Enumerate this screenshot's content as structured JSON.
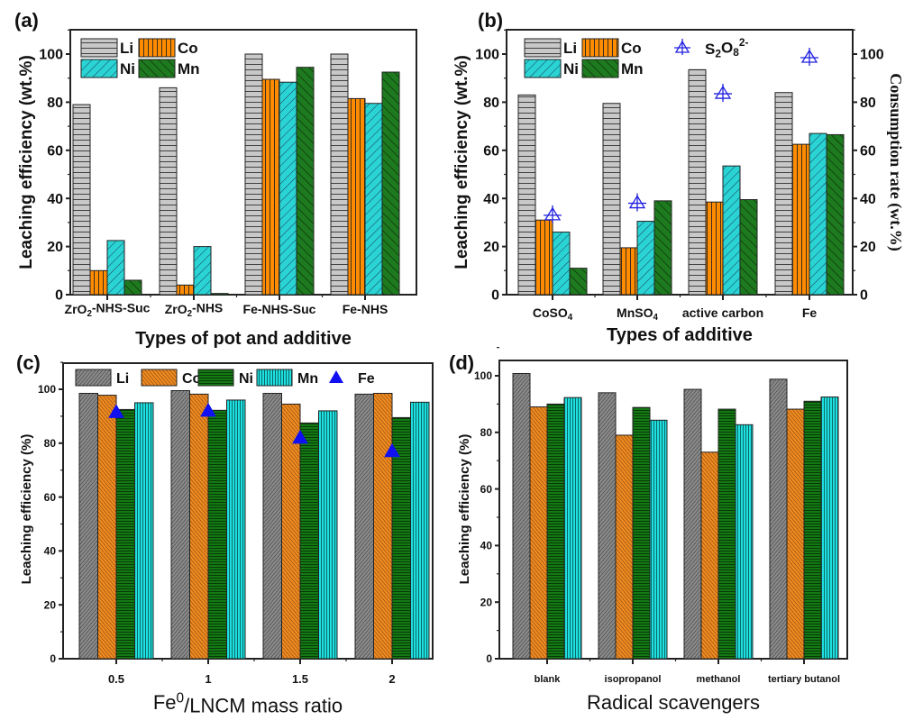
{
  "chart_data": [
    {
      "panel": "a",
      "type": "bar",
      "panel_label": "(a)",
      "title": "",
      "xlabel": "Types of pot and additive",
      "ylabel": "Leaching efficiency (wt.%)",
      "ylim": [
        0,
        110
      ],
      "yticks": [
        0,
        20,
        40,
        60,
        80,
        100
      ],
      "categories": [
        "ZrO2-NHS-Suc",
        "ZrO2-NHS",
        "Fe-NHS-Suc",
        "Fe-NHS"
      ],
      "category_labels": [
        {
          "parts": [
            {
              "t": "ZrO"
            },
            {
              "t": "2",
              "sub": true
            },
            {
              "t": "-NHS-Suc"
            }
          ]
        },
        {
          "parts": [
            {
              "t": "ZrO"
            },
            {
              "t": "2",
              "sub": true
            },
            {
              "t": "-NHS"
            }
          ]
        },
        {
          "parts": [
            {
              "t": "Fe-NHS-Suc"
            }
          ]
        },
        {
          "parts": [
            {
              "t": "Fe-NHS"
            }
          ]
        }
      ],
      "series": [
        {
          "name": "Li",
          "pattern": "hlines",
          "color": "#c8c8c8",
          "values": [
            79,
            86,
            100,
            100
          ]
        },
        {
          "name": "Co",
          "pattern": "vlines",
          "color": "#ff8c00",
          "values": [
            10,
            4,
            89.5,
            81.5
          ]
        },
        {
          "name": "Ni",
          "pattern": "diag-up",
          "color": "#2ad4d4",
          "values": [
            22.5,
            20,
            88.3,
            79.5
          ]
        },
        {
          "name": "Mn",
          "pattern": "diag-down",
          "color": "#1e7a1e",
          "values": [
            6,
            0.5,
            94.5,
            92.5
          ]
        }
      ],
      "legend_position": "top-left",
      "grid": false
    },
    {
      "panel": "b",
      "type": "bar",
      "panel_label": "(b)",
      "title": "",
      "xlabel": "Types of additive",
      "ylabel": "Leaching efficiency (wt.%)",
      "ylabel_right": "Consumption rate (wt.%)",
      "ylim": [
        0,
        110
      ],
      "ylim_right": [
        0,
        110
      ],
      "yticks": [
        0,
        20,
        40,
        60,
        80,
        100
      ],
      "categories": [
        "CoSO4",
        "MnSO4",
        "active carbon",
        "Fe"
      ],
      "category_labels": [
        {
          "parts": [
            {
              "t": "CoSO"
            },
            {
              "t": "4",
              "sub": true
            }
          ]
        },
        {
          "parts": [
            {
              "t": "MnSO"
            },
            {
              "t": "4",
              "sub": true
            }
          ]
        },
        {
          "parts": [
            {
              "t": "active carbon"
            }
          ]
        },
        {
          "parts": [
            {
              "t": "Fe"
            }
          ]
        }
      ],
      "series": [
        {
          "name": "Li",
          "pattern": "hlines",
          "color": "#c8c8c8",
          "values": [
            83,
            79.5,
            93.5,
            84
          ]
        },
        {
          "name": "Co",
          "pattern": "vlines",
          "color": "#ff8c00",
          "values": [
            31,
            19.5,
            38.5,
            62.5
          ]
        },
        {
          "name": "Ni",
          "pattern": "diag-up",
          "color": "#2ad4d4",
          "values": [
            26,
            30.5,
            53.5,
            67
          ]
        },
        {
          "name": "Mn",
          "pattern": "diag-down",
          "color": "#1e7a1e",
          "values": [
            11,
            39,
            39.5,
            66.5
          ]
        }
      ],
      "scatter_series": [
        {
          "name": "S2O8 2-",
          "label_parts": [
            {
              "t": "S"
            },
            {
              "t": "2",
              "sub": true
            },
            {
              "t": "O"
            },
            {
              "t": "8",
              "sub": true
            },
            {
              "t": "2-",
              "sup": true
            }
          ],
          "axis": "right",
          "marker": "open-triangle-cross",
          "color": "#2020e0",
          "values": [
            33,
            38,
            83.5,
            98.5
          ]
        }
      ],
      "legend_position": "top-left",
      "grid": false
    },
    {
      "panel": "c",
      "type": "bar",
      "panel_label": "(c)",
      "title": "",
      "xlabel": "Fe0/LNCM mass ratio",
      "xlabel_parts": [
        {
          "t": "Fe"
        },
        {
          "t": "0",
          "sup": true
        },
        {
          "t": "/LNCM mass ratio"
        }
      ],
      "ylabel": "Leaching efficiency (%)",
      "ylim": [
        0,
        110
      ],
      "yticks": [
        0,
        20,
        40,
        60,
        80,
        100
      ],
      "categories": [
        "0.5",
        "1",
        "1.5",
        "2"
      ],
      "series": [
        {
          "name": "Li",
          "pattern": "fine-diag-up",
          "color": "#808080",
          "values": [
            98.5,
            99.5,
            98.5,
            98.2
          ]
        },
        {
          "name": "Co",
          "pattern": "fine-diag-down",
          "color": "#f08a20",
          "values": [
            97.8,
            98.2,
            94.5,
            98.5
          ]
        },
        {
          "name": "Ni",
          "pattern": "fine-hlines",
          "color": "#137a13",
          "values": [
            92.5,
            92.2,
            87.5,
            89.5
          ]
        },
        {
          "name": "Mn",
          "pattern": "fine-vlines",
          "color": "#1ee0e0",
          "values": [
            95,
            96,
            92,
            95.2
          ]
        }
      ],
      "scatter_series": [
        {
          "name": "Fe",
          "marker": "filled-triangle",
          "color": "#1010f0",
          "values": [
            91.5,
            92,
            82,
            77
          ]
        }
      ],
      "legend_position": "top",
      "grid": false
    },
    {
      "panel": "d",
      "type": "bar",
      "panel_label": "(d)",
      "title": "",
      "xlabel": "Radical scavengers",
      "ylabel": "Leaching efficiency (%)",
      "ylim": [
        0,
        102
      ],
      "yticks": [
        0,
        20,
        40,
        60,
        80,
        100
      ],
      "categories": [
        "blank",
        "isopropanol",
        "methanol",
        "tertiary butanol"
      ],
      "series": [
        {
          "name": "Li",
          "pattern": "fine-diag-up",
          "color": "#808080",
          "values": [
            100.8,
            94,
            95.2,
            98.8
          ]
        },
        {
          "name": "Co",
          "pattern": "fine-diag-down",
          "color": "#f08a20",
          "values": [
            89,
            79,
            73,
            88.2
          ]
        },
        {
          "name": "Ni",
          "pattern": "fine-hlines",
          "color": "#137a13",
          "values": [
            90,
            88.8,
            88.2,
            91
          ]
        },
        {
          "name": "Mn",
          "pattern": "fine-vlines",
          "color": "#1ee0e0",
          "values": [
            92.3,
            84.3,
            82.7,
            92.5
          ]
        }
      ],
      "legend_position": "none",
      "grid": false
    }
  ]
}
